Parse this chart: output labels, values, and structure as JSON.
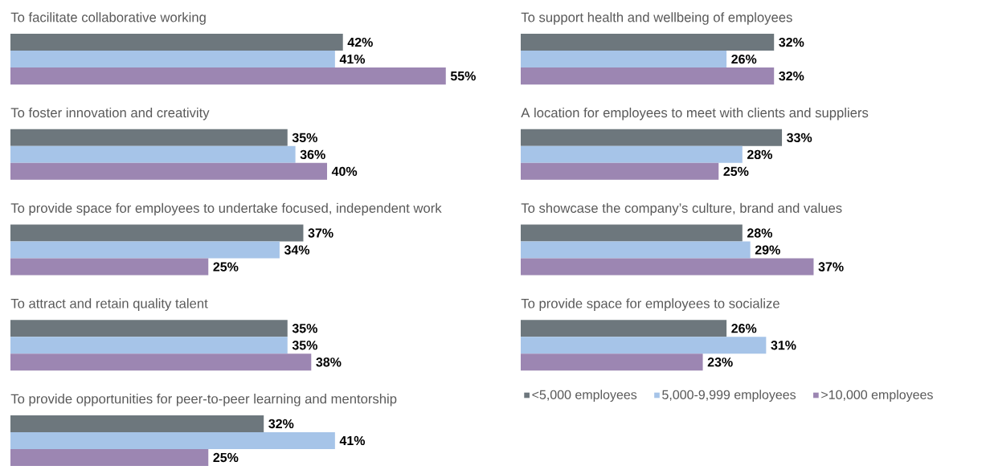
{
  "chart_data": [
    {
      "type": "bar",
      "orientation": "horizontal",
      "data_labels": false,
      "categories": [
        "To facilitate collaborative working",
        "To foster innovation and creativity",
        "To provide space for employees to undertake focused, independent work",
        "To attract and retain quality talent",
        "To provide opportunities for peer-to-peer learning and mentorship"
      ],
      "series": [
        {
          "color": "#6d777d",
          "values": [
            42,
            35,
            37,
            35,
            32
          ],
          "value_labels": [
            "42%",
            "35%",
            "37%",
            "35%",
            "32%"
          ]
        },
        {
          "color": "#a6c4e8",
          "values": [
            41,
            36,
            34,
            35,
            41
          ],
          "value_labels": [
            "41%",
            "36%",
            "34%",
            "35%",
            "41%"
          ]
        },
        {
          "color": "#9c86b2",
          "values": [
            55,
            40,
            25,
            38,
            25
          ],
          "value_labels": [
            "55%",
            "40%",
            "25%",
            "38%",
            "25%"
          ]
        }
      ],
      "legend": false
    },
    {
      "type": "bar",
      "orientation": "horizontal",
      "data_labels": false,
      "categories": [
        "To support health and wellbeing of employees",
        "A location for employees to meet with clients and suppliers",
        "To showcase the company’s culture, brand and values",
        "To provide space for employees to socialize"
      ],
      "series": [
        {
          "name": "<5,000 employees",
          "color": "#6d777d",
          "values": [
            32,
            33,
            28,
            26
          ],
          "value_labels": [
            "32%",
            "33%",
            "28%",
            "26%"
          ]
        },
        {
          "name": "5,000-9,999 employees",
          "color": "#a6c4e8",
          "values": [
            26,
            28,
            29,
            31
          ],
          "value_labels": [
            "26%",
            "28%",
            "29%",
            "31%"
          ]
        },
        {
          "name": ">10,000 employees",
          "color": "#9c86b2",
          "values": [
            32,
            25,
            37,
            23
          ],
          "value_labels": [
            "32%",
            "25%",
            "37%",
            "23%"
          ]
        }
      ],
      "legend": "bottom"
    }
  ]
}
